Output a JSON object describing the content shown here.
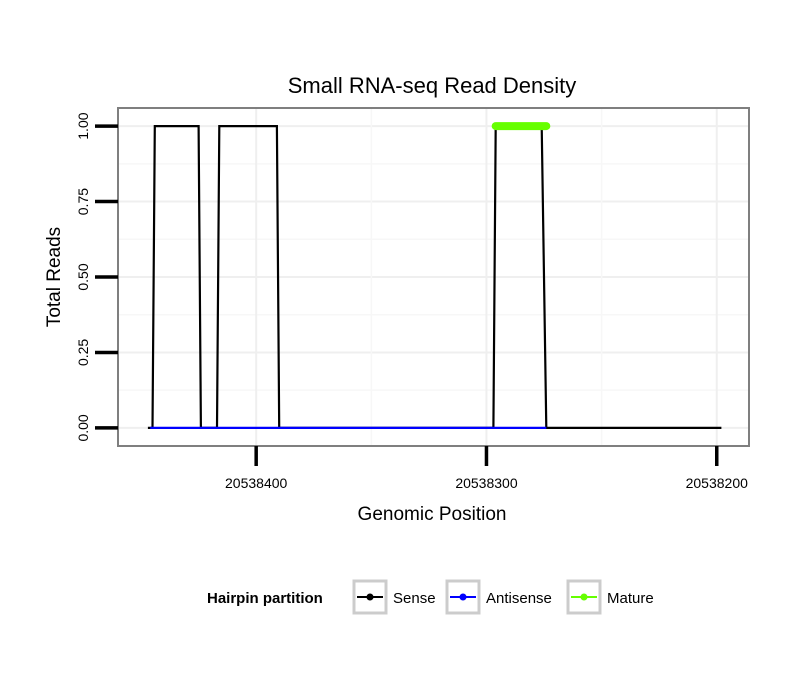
{
  "chart_data": {
    "type": "line",
    "title": "Small RNA-seq Read Density",
    "xlabel": "Genomic Position",
    "ylabel": "Total Reads",
    "x_reversed": true,
    "xlim": [
      20538460,
      20538186
    ],
    "ylim": [
      -0.06,
      1.06
    ],
    "x_ticks": [
      20538400,
      20538300,
      20538200
    ],
    "x_tick_labels": [
      "20538400",
      "20538300",
      "20538200"
    ],
    "y_ticks": [
      0,
      0.25,
      0.5,
      0.75,
      1.0
    ],
    "y_tick_labels": [
      "0.00",
      "0.25",
      "0.50",
      "0.75",
      "1.00"
    ],
    "grid": true,
    "legend_position": "bottom",
    "legend_title": "Hairpin partition",
    "series": [
      {
        "name": "Sense",
        "color": "#000000",
        "x": [
          20538447,
          20538445,
          20538444,
          20538425,
          20538424,
          20538417,
          20538416,
          20538391,
          20538390,
          20538300,
          20538297,
          20538296,
          20538276,
          20538274,
          20538222,
          20538198
        ],
        "values": [
          0,
          0,
          1,
          1,
          0,
          0,
          1,
          1,
          0,
          0,
          0,
          1,
          1,
          0,
          0,
          0
        ]
      },
      {
        "name": "Antisense",
        "color": "#0000ff",
        "x": [
          20538446,
          20538390,
          20538297,
          20538274
        ],
        "values": [
          0,
          0,
          0,
          0
        ]
      },
      {
        "name": "Mature",
        "color": "#66ff00",
        "x": [
          20538296,
          20538274
        ],
        "values": [
          1,
          1
        ]
      }
    ]
  }
}
